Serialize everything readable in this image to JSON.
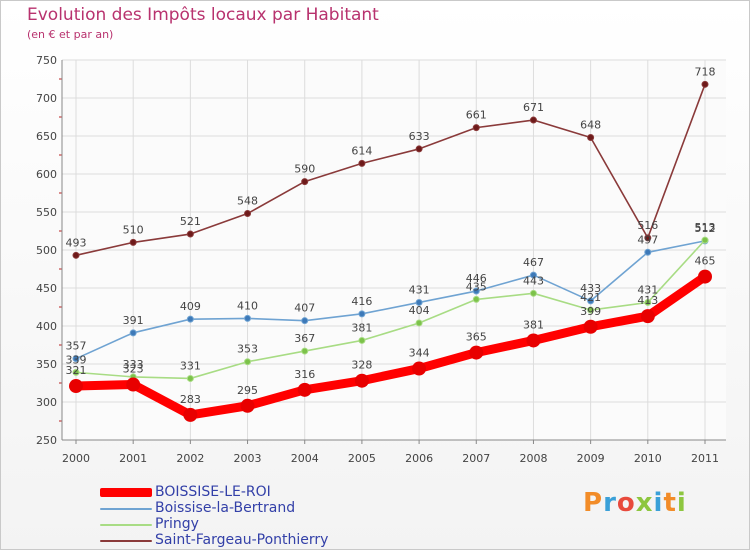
{
  "title": "Evolution des Impôts locaux par Habitant",
  "subtitle": "(en € et par an)",
  "logo": {
    "text": "Proxiti",
    "colors": [
      "#f28c28",
      "#3aa0d8",
      "#e84a3c",
      "#8dc63f",
      "#3aa0d8",
      "#f28c28",
      "#8dc63f"
    ]
  },
  "chart_data": {
    "type": "line",
    "title": "Evolution des Impôts locaux par Habitant",
    "subtitle": "(en € et par an)",
    "x": [
      "2000",
      "2001",
      "2002",
      "2003",
      "2004",
      "2005",
      "2006",
      "2007",
      "2008",
      "2009",
      "2010",
      "2011"
    ],
    "ylim": [
      250,
      750
    ],
    "yticks": [
      "250",
      "300",
      "350",
      "400",
      "450",
      "500",
      "550",
      "600",
      "650",
      "700",
      "750"
    ],
    "grid": true,
    "legend": "bottom-left",
    "series": [
      {
        "name": "BOISSISE-LE-ROI",
        "color": "#ff0000",
        "marker": "#e80000",
        "values": [
          321,
          323,
          283,
          295,
          316,
          328,
          344,
          365,
          381,
          399,
          413,
          465
        ],
        "labels": [
          "321",
          "323",
          "283",
          "295",
          "316",
          "328",
          "344",
          "365",
          "381",
          "399",
          "413",
          "465"
        ]
      },
      {
        "name": "Boissise-la-Bertrand",
        "color": "#6fa3d2",
        "marker": "#3d79b8",
        "values": [
          357,
          391,
          409,
          410,
          407,
          416,
          431,
          446,
          467,
          433,
          497,
          512
        ],
        "labels": [
          "357",
          "391",
          "409",
          "410",
          "407",
          "416",
          "431",
          "446",
          "467",
          "433",
          "497",
          "512"
        ]
      },
      {
        "name": "Pringy",
        "color": "#a8dc84",
        "marker": "#7cc24a",
        "values": [
          339,
          333,
          331,
          353,
          367,
          381,
          404,
          435,
          443,
          421,
          431,
          513
        ],
        "labels": [
          "339",
          "333",
          "331",
          "353",
          "367",
          "381",
          "404",
          "435",
          "443",
          "421",
          "431",
          "513"
        ]
      },
      {
        "name": "Saint-Fargeau-Ponthierry",
        "color": "#8a3a3a",
        "marker": "#6e1a1a",
        "values": [
          493,
          510,
          521,
          548,
          590,
          614,
          633,
          661,
          671,
          648,
          516,
          718
        ],
        "labels": [
          "493",
          "510",
          "521",
          "548",
          "590",
          "614",
          "633",
          "661",
          "671",
          "648",
          "516",
          "718"
        ]
      }
    ]
  }
}
